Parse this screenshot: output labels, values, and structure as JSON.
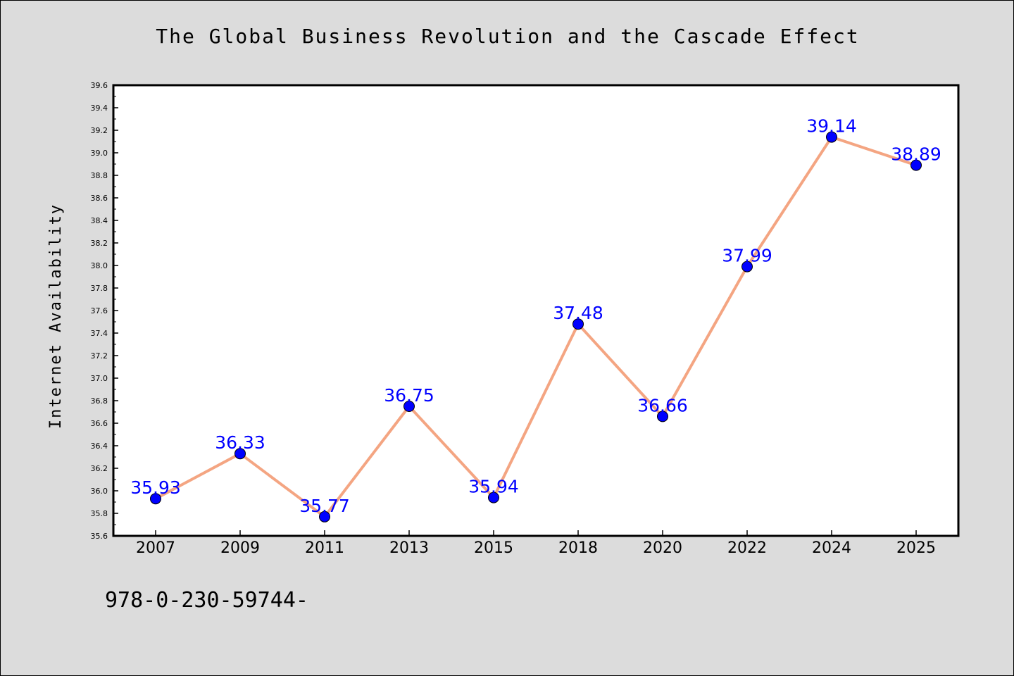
{
  "chart_data": {
    "type": "line",
    "title": "The Global Business Revolution and the Cascade Effect",
    "xlabel": "",
    "ylabel": "Internet Availability",
    "categories": [
      "2007",
      "2009",
      "2011",
      "2013",
      "2015",
      "2018",
      "2020",
      "2022",
      "2024",
      "2025"
    ],
    "series": [
      {
        "values": [
          35.93,
          36.33,
          35.77,
          36.75,
          35.94,
          37.48,
          36.66,
          37.99,
          39.14,
          38.89
        ]
      }
    ],
    "data_labels": [
      "35.93",
      "36.33",
      "35.77",
      "36.75",
      "35.94",
      "37.48",
      "36.66",
      "37.99",
      "39.14",
      "38.89"
    ],
    "ylim": [
      35.6,
      39.6
    ],
    "yticks": [
      "35.6",
      "35.8",
      "36.0",
      "36.2",
      "36.4",
      "36.6",
      "36.8",
      "37.0",
      "37.2",
      "37.4",
      "37.6",
      "37.8",
      "38.0",
      "38.2",
      "38.4",
      "38.6",
      "38.8",
      "39.0",
      "39.2",
      "39.4",
      "39.6"
    ],
    "grid": false,
    "colors": {
      "line": "#f4a582",
      "marker": "#0000ff",
      "data_label": "#0000ff",
      "background": "#dcdcdc",
      "plot_background": "#ffffff"
    }
  },
  "footnote": "978-0-230-59744-"
}
